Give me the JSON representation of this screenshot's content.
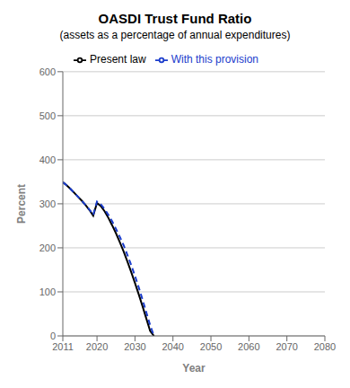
{
  "chart_data": {
    "type": "line",
    "title": "OASDI Trust Fund Ratio",
    "subtitle": "(assets as a percentage of annual expenditures)",
    "xlabel": "Year",
    "ylabel": "Percent",
    "x": [
      2011,
      2012,
      2013,
      2014,
      2015,
      2016,
      2017,
      2018,
      2019,
      2020,
      2021,
      2022,
      2023,
      2024,
      2025,
      2026,
      2027,
      2028,
      2029,
      2030,
      2031,
      2032,
      2033,
      2034,
      2035
    ],
    "series": [
      {
        "name": "Present law",
        "color": "#000000",
        "line_style": "solid",
        "values": [
          349,
          342,
          334,
          325,
          316,
          307,
          297,
          286,
          273,
          302,
          295,
          283,
          268,
          251,
          233,
          213,
          192,
          169,
          145,
          120,
          94,
          67,
          39,
          11,
          0
        ]
      },
      {
        "name": "With this provision",
        "color": "#1a3ccc",
        "line_style": "dashed",
        "values": [
          349,
          342,
          334,
          325,
          316,
          307,
          297,
          287,
          275,
          305,
          299,
          288,
          275,
          260,
          243,
          225,
          206,
          184,
          161,
          136,
          110,
          82,
          53,
          24,
          0
        ]
      }
    ],
    "xlim": [
      2011,
      2080
    ],
    "xticks": [
      2011,
      2020,
      2030,
      2040,
      2050,
      2060,
      2070,
      2080
    ],
    "ylim": [
      0,
      600
    ],
    "yticks": [
      0,
      100,
      200,
      300,
      400,
      500,
      600
    ],
    "grid": true,
    "legend": "top"
  }
}
